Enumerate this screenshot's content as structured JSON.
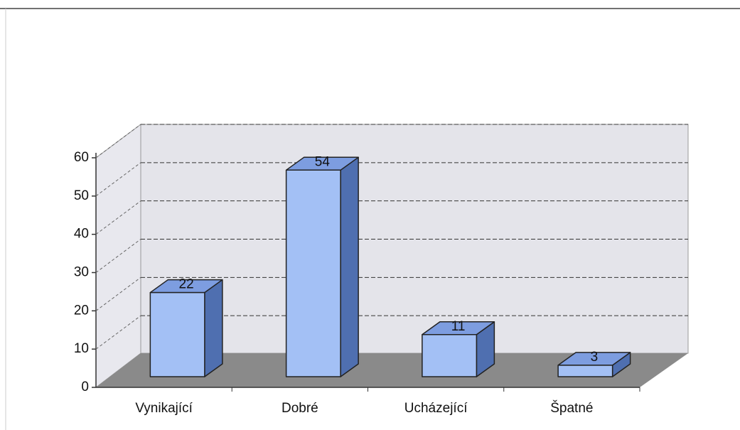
{
  "chart_data": {
    "type": "bar3d",
    "categories": [
      "Vynikající",
      "Dobré",
      "Ucházející",
      "Špatné"
    ],
    "values": [
      22,
      54,
      11,
      3
    ],
    "color": "#a3c0f5",
    "ylim": [
      0,
      60
    ],
    "yticks": [
      0,
      10,
      20,
      30,
      40,
      50,
      60
    ],
    "grid": true
  }
}
